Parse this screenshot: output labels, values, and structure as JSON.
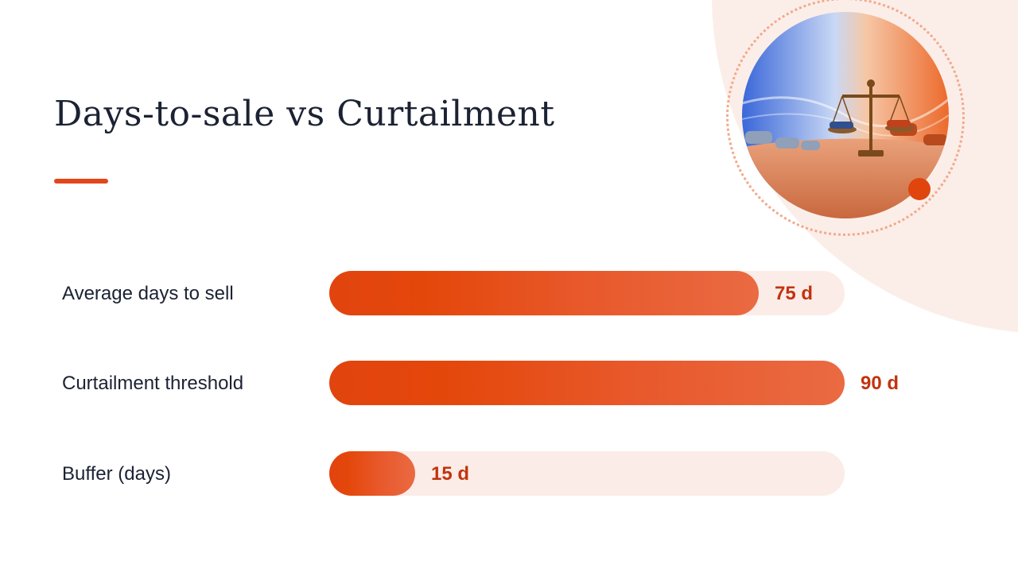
{
  "title": "Days-to-sale vs Curtailment",
  "colors": {
    "accent": "#e2461a",
    "bar_fill": "#e4470a",
    "bar_track": "#fbece7",
    "value_text": "#c2330f",
    "title_text": "#1b2233"
  },
  "decoration": {
    "image": "scales-of-justice-with-cars-icon"
  },
  "chart_data": {
    "type": "bar",
    "orientation": "horizontal",
    "categories": [
      "Average days to sell",
      "Curtailment threshold",
      "Buffer (days)"
    ],
    "values": [
      75,
      90,
      15
    ],
    "value_labels": [
      "75 d",
      "90 d",
      "15 d"
    ],
    "xlim": [
      0,
      90
    ],
    "grid": false,
    "legend": "none"
  }
}
